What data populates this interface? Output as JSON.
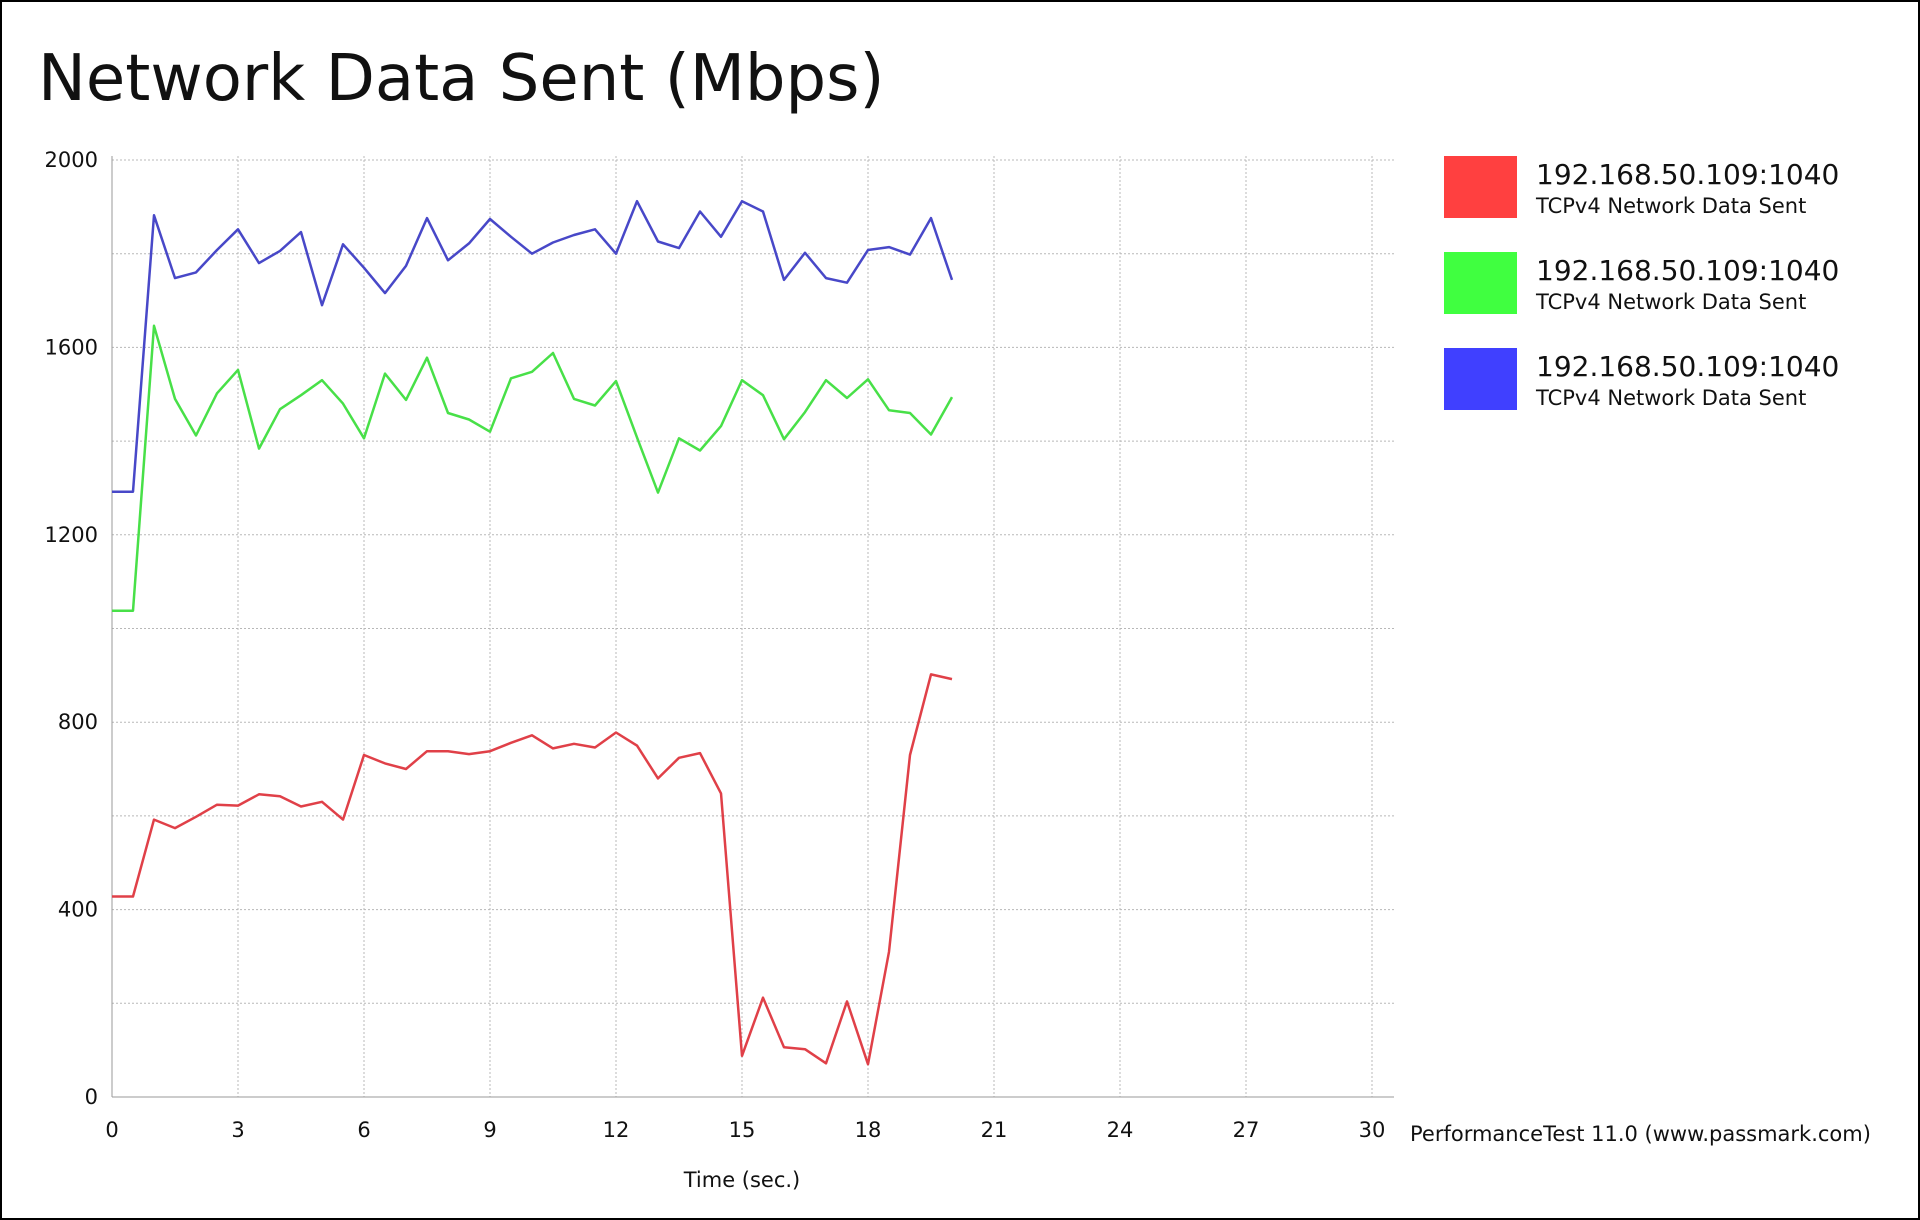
{
  "chart_data": {
    "type": "line",
    "title": "Network Data Sent (Mbps)",
    "xlabel": "Time (sec.)",
    "ylabel": "",
    "xlim": [
      0,
      30
    ],
    "ylim": [
      0,
      2000
    ],
    "x_ticks": [
      0,
      3,
      6,
      9,
      12,
      15,
      18,
      21,
      24,
      27,
      30
    ],
    "y_ticks": [
      0,
      400,
      800,
      1200,
      1600,
      2000
    ],
    "grid": true,
    "legend_position": "right",
    "series": [
      {
        "name": "192.168.50.109:1040",
        "subtitle": "TCPv4 Network Data Sent",
        "color": "#ff4040",
        "line_color": "#e04048",
        "points": [
          [
            0,
            428
          ],
          [
            0.5,
            428
          ],
          [
            1,
            592
          ],
          [
            1.5,
            574
          ],
          [
            2,
            598
          ],
          [
            2.5,
            624
          ],
          [
            3,
            622
          ],
          [
            3.5,
            646
          ],
          [
            4,
            642
          ],
          [
            4.5,
            620
          ],
          [
            5,
            630
          ],
          [
            5.5,
            592
          ],
          [
            6,
            730
          ],
          [
            6.5,
            712
          ],
          [
            7,
            700
          ],
          [
            7.5,
            738
          ],
          [
            8,
            738
          ],
          [
            8.5,
            732
          ],
          [
            9,
            738
          ],
          [
            9.5,
            756
          ],
          [
            10,
            772
          ],
          [
            10.5,
            744
          ],
          [
            11,
            754
          ],
          [
            11.5,
            746
          ],
          [
            12,
            778
          ],
          [
            12.5,
            750
          ],
          [
            13,
            680
          ],
          [
            13.5,
            724
          ],
          [
            14,
            734
          ],
          [
            14.5,
            648
          ],
          [
            15,
            88
          ],
          [
            15.5,
            212
          ],
          [
            16,
            106
          ],
          [
            16.5,
            102
          ],
          [
            17,
            72
          ],
          [
            17.5,
            204
          ],
          [
            18,
            70
          ],
          [
            18.5,
            310
          ],
          [
            19,
            730
          ],
          [
            19.5,
            902
          ],
          [
            20,
            892
          ]
        ]
      },
      {
        "name": "192.168.50.109:1040",
        "subtitle": "TCPv4 Network Data Sent",
        "color": "#40ff40",
        "line_color": "#48e048",
        "points": [
          [
            0,
            1038
          ],
          [
            0.5,
            1038
          ],
          [
            1,
            1646
          ],
          [
            1.5,
            1490
          ],
          [
            2,
            1412
          ],
          [
            2.5,
            1502
          ],
          [
            3,
            1552
          ],
          [
            3.5,
            1384
          ],
          [
            4,
            1468
          ],
          [
            4.5,
            1498
          ],
          [
            5,
            1530
          ],
          [
            5.5,
            1480
          ],
          [
            6,
            1406
          ],
          [
            6.5,
            1544
          ],
          [
            7,
            1488
          ],
          [
            7.5,
            1578
          ],
          [
            8,
            1460
          ],
          [
            8.5,
            1446
          ],
          [
            9,
            1420
          ],
          [
            9.5,
            1534
          ],
          [
            10,
            1548
          ],
          [
            10.5,
            1588
          ],
          [
            11,
            1490
          ],
          [
            11.5,
            1476
          ],
          [
            12,
            1528
          ],
          [
            12.5,
            1408
          ],
          [
            13,
            1290
          ],
          [
            13.5,
            1406
          ],
          [
            14,
            1380
          ],
          [
            14.5,
            1432
          ],
          [
            15,
            1530
          ],
          [
            15.5,
            1498
          ],
          [
            16,
            1404
          ],
          [
            16.5,
            1462
          ],
          [
            17,
            1530
          ],
          [
            17.5,
            1492
          ],
          [
            18,
            1532
          ],
          [
            18.5,
            1466
          ],
          [
            19,
            1460
          ],
          [
            19.5,
            1414
          ],
          [
            20,
            1494
          ]
        ]
      },
      {
        "name": "192.168.50.109:1040",
        "subtitle": "TCPv4 Network Data Sent",
        "color": "#4040ff",
        "line_color": "#4848c8",
        "points": [
          [
            0,
            1292
          ],
          [
            0.5,
            1292
          ],
          [
            1,
            1882
          ],
          [
            1.5,
            1748
          ],
          [
            2,
            1760
          ],
          [
            2.5,
            1808
          ],
          [
            3,
            1852
          ],
          [
            3.5,
            1780
          ],
          [
            4,
            1806
          ],
          [
            4.5,
            1846
          ],
          [
            5,
            1690
          ],
          [
            5.5,
            1820
          ],
          [
            6,
            1770
          ],
          [
            6.5,
            1716
          ],
          [
            7,
            1774
          ],
          [
            7.5,
            1876
          ],
          [
            8,
            1786
          ],
          [
            8.5,
            1822
          ],
          [
            9,
            1874
          ],
          [
            9.5,
            1836
          ],
          [
            10,
            1800
          ],
          [
            10.5,
            1824
          ],
          [
            11,
            1840
          ],
          [
            11.5,
            1852
          ],
          [
            12,
            1800
          ],
          [
            12.5,
            1912
          ],
          [
            13,
            1826
          ],
          [
            13.5,
            1812
          ],
          [
            14,
            1890
          ],
          [
            14.5,
            1836
          ],
          [
            15,
            1912
          ],
          [
            15.5,
            1890
          ],
          [
            16,
            1744
          ],
          [
            16.5,
            1802
          ],
          [
            17,
            1748
          ],
          [
            17.5,
            1738
          ],
          [
            18,
            1808
          ],
          [
            18.5,
            1814
          ],
          [
            19,
            1798
          ],
          [
            19.5,
            1876
          ],
          [
            20,
            1744
          ]
        ]
      }
    ]
  },
  "footer": {
    "credit": "PerformanceTest 11.0 (www.passmark.com)"
  }
}
